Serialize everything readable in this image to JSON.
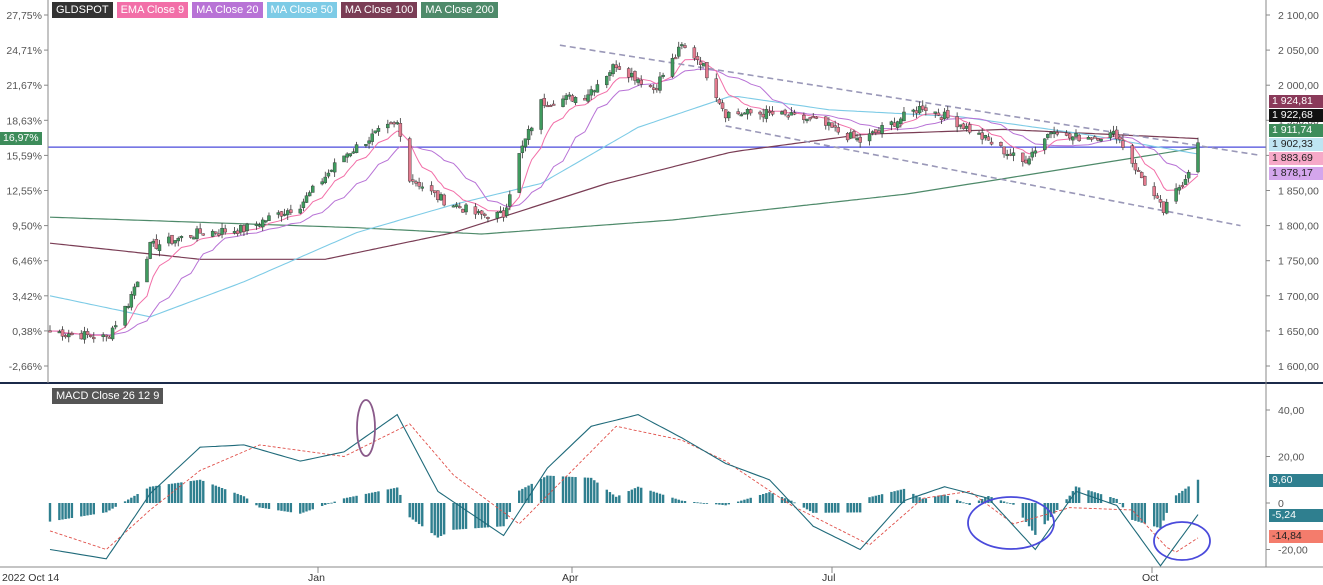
{
  "legend": [
    {
      "label": "GLDSPOT",
      "color": "#333333"
    },
    {
      "label": "EMA Close 9",
      "color": "#f26fa8"
    },
    {
      "label": "MA Close 20",
      "color": "#b873d6"
    },
    {
      "label": "MA Close 50",
      "color": "#7dcbe6"
    },
    {
      "label": "MA Close 100",
      "color": "#7a3d55"
    },
    {
      "label": "MA Close 200",
      "color": "#4e8a6a"
    }
  ],
  "macd_label": "MACD Close 26 12 9",
  "left_axis_current": "16,97%",
  "price_badges": [
    {
      "label": "1 924,81",
      "bg": "#8a3a5a",
      "fg": "#ffffff",
      "value": 1924.81
    },
    {
      "label": "1 922,68",
      "bg": "#111111",
      "fg": "#ffffff",
      "value": 1922.68
    },
    {
      "label": "1 911,74",
      "bg": "#3d8c5a",
      "fg": "#ffffff",
      "value": 1911.74
    },
    {
      "label": "1 902,33",
      "bg": "#bfe5f2",
      "fg": "#222222",
      "value": 1902.33
    },
    {
      "label": "1 883,69",
      "bg": "#f6a9c8",
      "fg": "#222222",
      "value": 1883.69
    },
    {
      "label": "1 878,17",
      "bg": "#d4a6ec",
      "fg": "#222222",
      "value": 1878.17
    }
  ],
  "macd_badges": [
    {
      "label": "9,60",
      "bg": "#2f7f8f",
      "fg": "#ffffff",
      "value": 9.6
    },
    {
      "label": "-5,24",
      "bg": "#2f7f8f",
      "fg": "#ffffff",
      "value": -5.24
    },
    {
      "label": "-14,84",
      "bg": "#f47c6c",
      "fg": "#222222",
      "value": -14.84
    }
  ],
  "chart_data": [
    {
      "type": "candlestick",
      "title": "GLDSPOT",
      "y_right_ticks": [
        "2 100,00",
        "2 050,00",
        "2 000,00",
        "1 950,00",
        "1 900,00",
        "1 850,00",
        "1 800,00",
        "1 750,00",
        "1 700,00",
        "1 650,00",
        "1 600,00"
      ],
      "y_left_ticks": [
        "27,75%",
        "24,71%",
        "21,67%",
        "18,63%",
        "15,59%",
        "12,55%",
        "9,50%",
        "6,46%",
        "3,42%",
        "0,38%",
        "-2,66%"
      ],
      "ylim": [
        1580,
        2115
      ],
      "x_ticks": [
        "2022 Oct 14",
        "Jan",
        "Apr",
        "Jul",
        "Oct"
      ],
      "horizontal_line": 1911.74,
      "ohlc_keypoints": [
        [
          "2022-10-14",
          1650
        ],
        [
          "2022-11-01",
          1640
        ],
        [
          "2022-11-08",
          1690
        ],
        [
          "2022-11-15",
          1770
        ],
        [
          "2022-12-01",
          1790
        ],
        [
          "2022-12-15",
          1795
        ],
        [
          "2023-01-02",
          1830
        ],
        [
          "2023-01-16",
          1900
        ],
        [
          "2023-01-26",
          1930
        ],
        [
          "2023-02-02",
          1945
        ],
        [
          "2023-02-06",
          1870
        ],
        [
          "2023-02-15",
          1840
        ],
        [
          "2023-02-28",
          1815
        ],
        [
          "2023-03-08",
          1815
        ],
        [
          "2023-03-13",
          1900
        ],
        [
          "2023-03-20",
          1975
        ],
        [
          "2023-04-03",
          1985
        ],
        [
          "2023-04-13",
          2030
        ],
        [
          "2023-04-25",
          1995
        ],
        [
          "2023-05-04",
          2055
        ],
        [
          "2023-05-10",
          2035
        ],
        [
          "2023-05-18",
          1960
        ],
        [
          "2023-05-31",
          1960
        ],
        [
          "2023-06-15",
          1950
        ],
        [
          "2023-06-30",
          1920
        ],
        [
          "2023-07-14",
          1955
        ],
        [
          "2023-07-20",
          1970
        ],
        [
          "2023-08-01",
          1945
        ],
        [
          "2023-08-21",
          1890
        ],
        [
          "2023-08-31",
          1940
        ],
        [
          "2023-09-04",
          1925
        ],
        [
          "2023-09-20",
          1930
        ],
        [
          "2023-09-27",
          1875
        ],
        [
          "2023-10-05",
          1820
        ],
        [
          "2023-10-12",
          1870
        ],
        [
          "2023-10-16",
          1915
        ]
      ],
      "indicators": {
        "EMA Close 9": "pink",
        "MA Close 20": "purple",
        "MA Close 50": "light blue",
        "MA Close 100": "maroon",
        "MA Close 200": "green"
      },
      "trend_channel": {
        "upper": [
          [
            "2023-03-26",
            2057
          ],
          [
            "2023-10-20",
            1900
          ]
        ],
        "lower": [
          [
            "2023-05-18",
            1942
          ],
          [
            "2023-10-20",
            1800
          ]
        ]
      }
    },
    {
      "type": "macd",
      "title": "MACD Close 26 12 9",
      "y_ticks": [
        "40,00",
        "20,00",
        "0",
        "-20,00"
      ],
      "ylim": [
        -28,
        50
      ],
      "macd_keypoints": [
        [
          "2022-10-14",
          -20
        ],
        [
          "2022-11-01",
          -24
        ],
        [
          "2022-11-15",
          4
        ],
        [
          "2022-12-01",
          24
        ],
        [
          "2022-12-15",
          25
        ],
        [
          "2023-01-02",
          18
        ],
        [
          "2023-01-16",
          22
        ],
        [
          "2023-02-02",
          38
        ],
        [
          "2023-02-15",
          5
        ],
        [
          "2023-03-08",
          -14
        ],
        [
          "2023-03-22",
          15
        ],
        [
          "2023-04-05",
          33
        ],
        [
          "2023-04-20",
          38
        ],
        [
          "2023-05-04",
          28
        ],
        [
          "2023-05-18",
          17
        ],
        [
          "2023-06-01",
          10
        ],
        [
          "2023-06-15",
          -10
        ],
        [
          "2023-06-30",
          -20
        ],
        [
          "2023-07-14",
          1
        ],
        [
          "2023-07-27",
          7
        ],
        [
          "2023-08-10",
          2
        ],
        [
          "2023-08-25",
          -20
        ],
        [
          "2023-09-07",
          5
        ],
        [
          "2023-09-20",
          -1
        ],
        [
          "2023-10-04",
          -27
        ],
        [
          "2023-10-16",
          -5
        ]
      ],
      "signal_keypoints": [
        [
          "2022-10-14",
          -12
        ],
        [
          "2022-11-01",
          -20
        ],
        [
          "2022-11-15",
          -3
        ],
        [
          "2022-12-01",
          14
        ],
        [
          "2022-12-20",
          25
        ],
        [
          "2023-01-16",
          20
        ],
        [
          "2023-02-06",
          34
        ],
        [
          "2023-02-20",
          12
        ],
        [
          "2023-03-13",
          -9
        ],
        [
          "2023-03-27",
          10
        ],
        [
          "2023-04-13",
          33
        ],
        [
          "2023-05-04",
          27
        ],
        [
          "2023-05-18",
          18
        ],
        [
          "2023-06-08",
          -1
        ],
        [
          "2023-07-03",
          -18
        ],
        [
          "2023-07-20",
          2
        ],
        [
          "2023-08-04",
          5
        ],
        [
          "2023-08-18",
          -9
        ],
        [
          "2023-09-05",
          -2
        ],
        [
          "2023-09-25",
          -3
        ],
        [
          "2023-10-08",
          -22
        ],
        [
          "2023-10-16",
          -15
        ]
      ],
      "histogram_current": 9.6,
      "annotations": [
        "purple oval near Feb 2023 top",
        "blue oval near Aug 2023 low",
        "blue oval near Oct 2023 low"
      ]
    }
  ]
}
